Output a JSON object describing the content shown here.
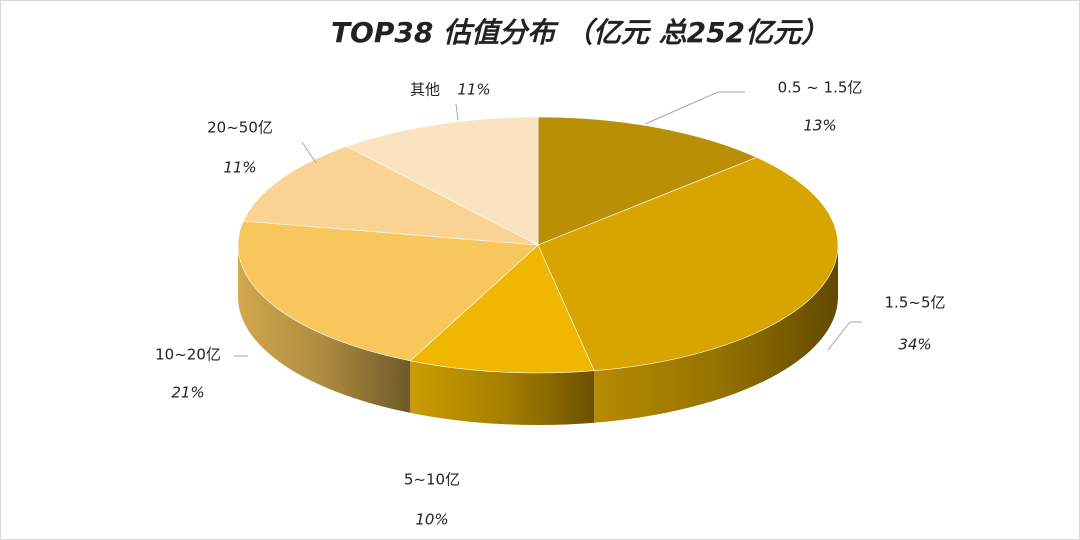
{
  "chart_data": {
    "type": "pie",
    "title": "TOP38 估值分布 （亿元 总252亿元）",
    "categories": [
      "0.5 ~ 1.5亿",
      "1.5~5亿",
      "5~10亿",
      "10~20亿",
      "20~50亿",
      "其他"
    ],
    "values": [
      13,
      34,
      10,
      21,
      11,
      11
    ],
    "value_labels": [
      "13%",
      "34%",
      "10%",
      "21%",
      "11%",
      "11%"
    ],
    "colors": [
      "#b88f05",
      "#d7a400",
      "#efb700",
      "#f7c65c",
      "#f9d393",
      "#fbe2c0"
    ]
  }
}
